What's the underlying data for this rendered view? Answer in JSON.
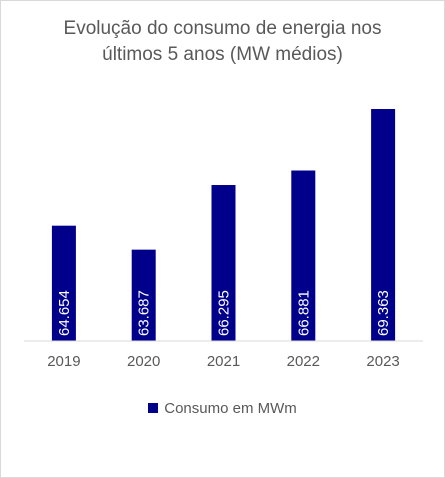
{
  "chart_data": {
    "type": "bar",
    "title": "Evolução do consumo de energia nos últimos 5 anos (MW médios)",
    "title_lines": [
      "Evolução do consumo de energia nos",
      "últimos 5 anos (MW médios)"
    ],
    "categories": [
      "2019",
      "2020",
      "2021",
      "2022",
      "2023"
    ],
    "series": [
      {
        "name": "Consumo em MWm",
        "values": [
          64654,
          63687,
          66295,
          66881,
          69363
        ],
        "data_labels": [
          "64.654",
          "63.687",
          "66.295",
          "66.881",
          "69.363"
        ]
      }
    ],
    "ylim": [
      60000,
      72000
    ],
    "grid": false,
    "legend": "bottom",
    "bar_color": "#00008b"
  }
}
